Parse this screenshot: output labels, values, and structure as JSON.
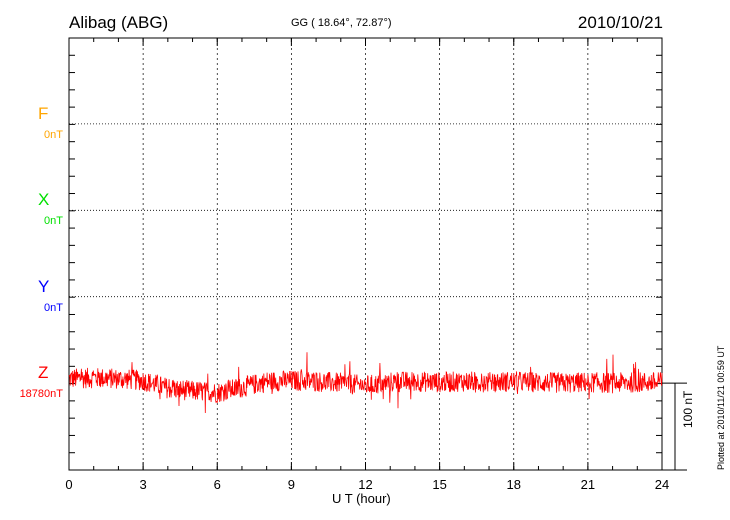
{
  "header": {
    "station": "Alibag (ABG)",
    "coords": "GG ( 18.64°,  72.87°)",
    "date": "2010/10/21"
  },
  "footer": {
    "plotted": "Plotted at 2010/11/21 00:59 UT"
  },
  "chart_data": {
    "type": "line",
    "xlabel": "U T (hour)",
    "xlim": [
      0,
      24
    ],
    "xticks": [
      "0",
      "3",
      "6",
      "9",
      "12",
      "15",
      "18",
      "21",
      "24"
    ],
    "grid": true,
    "scale_bar": "100 nT",
    "scale_bar_nT": 100,
    "components": [
      {
        "name": "F",
        "baseline": "0nT",
        "color": "#ffa500",
        "has_data": false
      },
      {
        "name": "X",
        "baseline": "0nT",
        "color": "#00e000",
        "has_data": false
      },
      {
        "name": "Y",
        "baseline": "0nT",
        "color": "#0000ff",
        "has_data": false
      },
      {
        "name": "Z",
        "baseline": "18780nT",
        "color": "#ff0000",
        "has_data": true,
        "hourly_mean_deviation_nT": [
          5,
          6,
          5,
          3,
          -6,
          -9,
          -11,
          -5,
          2,
          3,
          2,
          0,
          -3,
          1,
          2,
          1,
          2,
          1,
          2,
          1,
          0,
          1,
          0,
          1
        ],
        "noise_amplitude_nT": 12
      }
    ]
  }
}
